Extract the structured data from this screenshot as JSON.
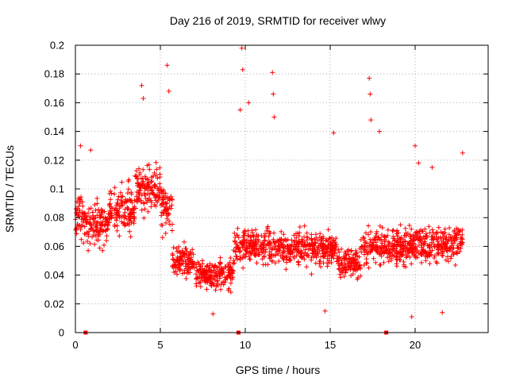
{
  "chart_data": {
    "type": "scatter",
    "title": "Day 216 of 2019, SRMTID for receiver wlwy",
    "xlabel": "GPS time / hours",
    "ylabel": "SRMTID / TECUs",
    "xlim": [
      0,
      24.3
    ],
    "ylim": [
      0,
      0.2
    ],
    "x_ticks": [
      0,
      5,
      10,
      15,
      20
    ],
    "x_tick_labels": [
      "0",
      "5",
      "10",
      "15",
      "20"
    ],
    "y_ticks": [
      0,
      0.02,
      0.04,
      0.06,
      0.08,
      0.1,
      0.12,
      0.14,
      0.16,
      0.18,
      0.2
    ],
    "y_tick_labels": [
      "0",
      "0.02",
      "0.04",
      "0.06",
      "0.08",
      "0.1",
      "0.12",
      "0.14",
      "0.16",
      "0.18",
      "0.2"
    ],
    "grid": true,
    "marker": "+",
    "series": [
      {
        "name": "SRMTID",
        "color": "#ff0000",
        "profile": [
          {
            "x": [
              0.0,
              0.6
            ],
            "y_mean": 0.08,
            "y_spread": 0.025
          },
          {
            "x": [
              0.6,
              2.0
            ],
            "y_mean": 0.075,
            "y_spread": 0.025
          },
          {
            "x": [
              2.0,
              3.5
            ],
            "y_mean": 0.085,
            "y_spread": 0.027
          },
          {
            "x": [
              3.5,
              5.0
            ],
            "y_mean": 0.1,
            "y_spread": 0.03
          },
          {
            "x": [
              5.0,
              5.7
            ],
            "y_mean": 0.085,
            "y_spread": 0.03
          },
          {
            "x": [
              5.7,
              7.0
            ],
            "y_mean": 0.05,
            "y_spread": 0.018
          },
          {
            "x": [
              7.0,
              9.3
            ],
            "y_mean": 0.04,
            "y_spread": 0.018
          },
          {
            "x": [
              9.3,
              11.5
            ],
            "y_mean": 0.06,
            "y_spread": 0.022
          },
          {
            "x": [
              11.5,
              15.5
            ],
            "y_mean": 0.058,
            "y_spread": 0.02
          },
          {
            "x": [
              15.5,
              16.8
            ],
            "y_mean": 0.048,
            "y_spread": 0.018
          },
          {
            "x": [
              16.8,
              19.5
            ],
            "y_mean": 0.06,
            "y_spread": 0.022
          },
          {
            "x": [
              19.5,
              22.8
            ],
            "y_mean": 0.062,
            "y_spread": 0.022
          }
        ],
        "peaks": [
          {
            "x": 0.3,
            "y": 0.13
          },
          {
            "x": 0.9,
            "y": 0.127
          },
          {
            "x": 3.9,
            "y": 0.172
          },
          {
            "x": 4.0,
            "y": 0.163
          },
          {
            "x": 5.4,
            "y": 0.186
          },
          {
            "x": 5.5,
            "y": 0.168
          },
          {
            "x": 9.8,
            "y": 0.198
          },
          {
            "x": 9.85,
            "y": 0.183
          },
          {
            "x": 9.7,
            "y": 0.155
          },
          {
            "x": 10.2,
            "y": 0.16
          },
          {
            "x": 11.6,
            "y": 0.181
          },
          {
            "x": 11.65,
            "y": 0.166
          },
          {
            "x": 11.7,
            "y": 0.15
          },
          {
            "x": 15.2,
            "y": 0.139
          },
          {
            "x": 17.3,
            "y": 0.177
          },
          {
            "x": 17.35,
            "y": 0.166
          },
          {
            "x": 17.4,
            "y": 0.148
          },
          {
            "x": 17.9,
            "y": 0.14
          },
          {
            "x": 20.0,
            "y": 0.13
          },
          {
            "x": 20.2,
            "y": 0.118
          },
          {
            "x": 21.0,
            "y": 0.115
          },
          {
            "x": 22.8,
            "y": 0.125
          },
          {
            "x": 8.1,
            "y": 0.013
          },
          {
            "x": 14.7,
            "y": 0.015
          },
          {
            "x": 19.8,
            "y": 0.011
          },
          {
            "x": 21.6,
            "y": 0.014
          }
        ],
        "zero_markers": [
          0.6,
          9.6,
          18.3
        ]
      }
    ]
  }
}
